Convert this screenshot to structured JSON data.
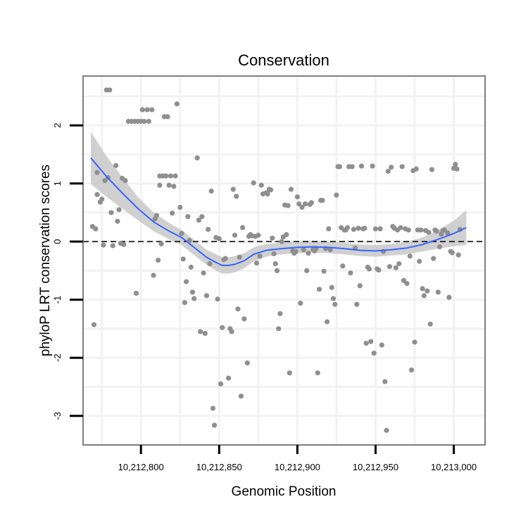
{
  "chart_data": {
    "type": "scatter",
    "title": "Conservation",
    "xlabel": "Genomic Position",
    "ylabel": "phyloP LRT conservation scores",
    "xlim": [
      10212763,
      10213020
    ],
    "ylim": [
      -3.5,
      2.85
    ],
    "x_ticks": [
      10212800,
      10212850,
      10212900,
      10212950,
      10213000
    ],
    "x_tick_labels": [
      "10,212,800",
      "10,212,850",
      "10,212,900",
      "10,212,950",
      "10,213,000"
    ],
    "y_ticks": [
      -3,
      -2,
      -1,
      0,
      1,
      2
    ],
    "y_tick_labels": [
      "-3",
      "-2",
      "-1",
      "0",
      "1",
      "2"
    ],
    "reference_line_y": 0,
    "colors": {
      "points": "#8f8f8f",
      "smooth_line": "#3366ff",
      "confidence_band": "#c8c8c8",
      "panel_border": "#7f7f7f",
      "grid": "#f2f2f2",
      "reference_line": "#000000"
    },
    "series": [
      {
        "name": "scores",
        "points": [
          [
            10212769,
            0.26
          ],
          [
            10212770,
            -1.43
          ],
          [
            10212771,
            0.22
          ],
          [
            10212772,
            1.19
          ],
          [
            10212772,
            0.81
          ],
          [
            10212774,
            0.68
          ],
          [
            10212775,
            0.73
          ],
          [
            10212776,
            -0.06
          ],
          [
            10212777,
            1.05
          ],
          [
            10212778,
            2.61
          ],
          [
            10212779,
            1.1
          ],
          [
            10212780,
            2.61
          ],
          [
            10212781,
            0.5
          ],
          [
            10212782,
            -0.07
          ],
          [
            10212784,
            1.31
          ],
          [
            10212785,
            0.35
          ],
          [
            10212786,
            0.55
          ],
          [
            10212787,
            -0.03
          ],
          [
            10212788,
            1.09
          ],
          [
            10212789,
            -0.05
          ],
          [
            10212790,
            1.05
          ],
          [
            10212792,
            2.07
          ],
          [
            10212794,
            2.07
          ],
          [
            10212796,
            2.07
          ],
          [
            10212797,
            -0.89
          ],
          [
            10212798,
            2.07
          ],
          [
            10212800,
            2.07
          ],
          [
            10212801,
            2.27
          ],
          [
            10212802,
            2.07
          ],
          [
            10212804,
            2.27
          ],
          [
            10212805,
            2.07
          ],
          [
            10212807,
            2.27
          ],
          [
            10212808,
            -0.58
          ],
          [
            10212809,
            0.39
          ],
          [
            10212810,
            0.45
          ],
          [
            10212811,
            -0.32
          ],
          [
            10212812,
            1.13
          ],
          [
            10212812,
            0.97
          ],
          [
            10212813,
            -0.04
          ],
          [
            10212814,
            1.13
          ],
          [
            10212815,
            2.15
          ],
          [
            10212816,
            1.13
          ],
          [
            10212817,
            2.15
          ],
          [
            10212818,
            0.97
          ],
          [
            10212819,
            1.13
          ],
          [
            10212820,
            0.49
          ],
          [
            10212821,
            0.95
          ],
          [
            10212822,
            1.13
          ],
          [
            10212823,
            2.37
          ],
          [
            10212825,
            0.59
          ],
          [
            10212826,
            0.14
          ],
          [
            10212827,
            -0.3
          ],
          [
            10212828,
            -1.05
          ],
          [
            10212829,
            -0.69
          ],
          [
            10212830,
            0.43
          ],
          [
            10212831,
            0.02
          ],
          [
            10212832,
            -0.44
          ],
          [
            10212833,
            -0.87
          ],
          [
            10212834,
            -0.98
          ],
          [
            10212836,
            1.44
          ],
          [
            10212837,
            0.37
          ],
          [
            10212838,
            -1.55
          ],
          [
            10212839,
            0.43
          ],
          [
            10212840,
            -0.54
          ],
          [
            10212841,
            -1.58
          ],
          [
            10212842,
            -0.93
          ],
          [
            10212843,
            0.21
          ],
          [
            10212844,
            -0.38
          ],
          [
            10212845,
            0.87
          ],
          [
            10212846,
            -2.87
          ],
          [
            10212847,
            -3.16
          ],
          [
            10212848,
            0.07
          ],
          [
            10212849,
            -0.99
          ],
          [
            10212850,
            0.05
          ],
          [
            10212851,
            -2.45
          ],
          [
            10212852,
            -1.48
          ],
          [
            10212853,
            -0.31
          ],
          [
            10212854,
            -0.29
          ],
          [
            10212856,
            -2.35
          ],
          [
            10212857,
            -1.5
          ],
          [
            10212858,
            -1.55
          ],
          [
            10212859,
            0.9
          ],
          [
            10212860,
            0.11
          ],
          [
            10212861,
            0.78
          ],
          [
            10212862,
            -1.16
          ],
          [
            10212863,
            -0.27
          ],
          [
            10212864,
            -2.66
          ],
          [
            10212865,
            0.24
          ],
          [
            10212866,
            -1.33
          ],
          [
            10212868,
            -2.09
          ],
          [
            10212869,
            0.09
          ],
          [
            10212870,
            0.12
          ],
          [
            10212871,
            0.1
          ],
          [
            10212872,
            1.01
          ],
          [
            10212873,
            0.09
          ],
          [
            10212874,
            -0.37
          ],
          [
            10212875,
            0.11
          ],
          [
            10212876,
            -0.25
          ],
          [
            10212877,
            0.97
          ],
          [
            10212878,
            0.82
          ],
          [
            10212880,
            0.84
          ],
          [
            10212881,
            0.82
          ],
          [
            10212882,
            0.9
          ],
          [
            10212883,
            0.89
          ],
          [
            10212884,
            0.06
          ],
          [
            10212885,
            -0.21
          ],
          [
            10212886,
            -0.38
          ],
          [
            10212887,
            -0.5
          ],
          [
            10212888,
            -1.5
          ],
          [
            10212889,
            -1.24
          ],
          [
            10212890,
            0.0
          ],
          [
            10212891,
            0.08
          ],
          [
            10212892,
            0.63
          ],
          [
            10212893,
            0.12
          ],
          [
            10212894,
            0.62
          ],
          [
            10212895,
            -2.26
          ],
          [
            10212896,
            0.9
          ],
          [
            10212897,
            -0.16
          ],
          [
            10212898,
            -0.2
          ],
          [
            10212899,
            -0.17
          ],
          [
            10212900,
            0.77
          ],
          [
            10212901,
            0.65
          ],
          [
            10212902,
            -1.06
          ],
          [
            10212903,
            0.59
          ],
          [
            10212904,
            -0.14
          ],
          [
            10212905,
            0.65
          ],
          [
            10212906,
            -0.5
          ],
          [
            10212907,
            -0.2
          ],
          [
            10212908,
            0.64
          ],
          [
            10212909,
            0.67
          ],
          [
            10212910,
            -0.14
          ],
          [
            10212911,
            -0.16
          ],
          [
            10212912,
            -0.12
          ],
          [
            10212913,
            -2.26
          ],
          [
            10212914,
            -0.82
          ],
          [
            10212915,
            0.71
          ],
          [
            10212916,
            0.71
          ],
          [
            10212917,
            -0.51
          ],
          [
            10212918,
            -0.12
          ],
          [
            10212919,
            -1.38
          ],
          [
            10212920,
            0.22
          ],
          [
            10212921,
            -0.14
          ],
          [
            10212922,
            -0.79
          ],
          [
            10212923,
            -0.98
          ],
          [
            10212924,
            -1.08
          ],
          [
            10212925,
            0.8
          ],
          [
            10212926,
            1.29
          ],
          [
            10212927,
            1.29
          ],
          [
            10212928,
            0.24
          ],
          [
            10212929,
            -0.42
          ],
          [
            10212930,
            0.2
          ],
          [
            10212931,
            0.2
          ],
          [
            10212932,
            0.24
          ],
          [
            10212933,
            1.29
          ],
          [
            10212934,
            -0.54
          ],
          [
            10212935,
            1.29
          ],
          [
            10212936,
            0.21
          ],
          [
            10212937,
            -0.11
          ],
          [
            10212938,
            -1.08
          ],
          [
            10212939,
            0.23
          ],
          [
            10212940,
            -0.76
          ],
          [
            10212941,
            1.3
          ],
          [
            10212942,
            0.22
          ],
          [
            10212943,
            0.23
          ],
          [
            10212944,
            -1.75
          ],
          [
            10212945,
            -0.44
          ],
          [
            10212946,
            -0.47
          ],
          [
            10212947,
            -1.72
          ],
          [
            10212948,
            1.3
          ],
          [
            10212949,
            -1.92
          ],
          [
            10212950,
            0.22
          ],
          [
            10212951,
            -0.47
          ],
          [
            10212952,
            -0.49
          ],
          [
            10212953,
            0.22
          ],
          [
            10212954,
            -1.78
          ],
          [
            10212955,
            -0.17
          ],
          [
            10212956,
            -2.41
          ],
          [
            10212957,
            -3.25
          ],
          [
            10212958,
            1.21
          ],
          [
            10212959,
            -0.43
          ],
          [
            10212960,
            1.28
          ],
          [
            10212961,
            0.26
          ],
          [
            10212962,
            0.23
          ],
          [
            10212963,
            -0.45
          ],
          [
            10212964,
            0.2
          ],
          [
            10212965,
            -0.38
          ],
          [
            10212966,
            0.24
          ],
          [
            10212967,
            1.29
          ],
          [
            10212968,
            -0.67
          ],
          [
            10212969,
            0.22
          ],
          [
            10212970,
            -0.72
          ],
          [
            10212971,
            0.2
          ],
          [
            10212972,
            -0.25
          ],
          [
            10212973,
            -2.21
          ],
          [
            10212974,
            1.22
          ],
          [
            10212975,
            -1.73
          ],
          [
            10212976,
            1.25
          ],
          [
            10212977,
            0.2
          ],
          [
            10212978,
            -0.34
          ],
          [
            10212979,
            0.2
          ],
          [
            10212980,
            -0.81
          ],
          [
            10212981,
            -0.93
          ],
          [
            10212982,
            0.19
          ],
          [
            10212983,
            -0.85
          ],
          [
            10212984,
            0.16
          ],
          [
            10212985,
            -1.42
          ],
          [
            10212986,
            1.24
          ],
          [
            10212987,
            -0.29
          ],
          [
            10212988,
            0.2
          ],
          [
            10212989,
            0.18
          ],
          [
            10212990,
            -0.87
          ],
          [
            10212991,
            -0.09
          ],
          [
            10212992,
            0.13
          ],
          [
            10212993,
            0.19
          ],
          [
            10212994,
            0.2
          ],
          [
            10212996,
            0.15
          ],
          [
            10212997,
            -0.96
          ],
          [
            10212998,
            -0.17
          ],
          [
            10212999,
            -0.19
          ],
          [
            10213000,
            1.26
          ],
          [
            10213001,
            1.33
          ],
          [
            10213002,
            1.25
          ],
          [
            10213003,
            -0.23
          ],
          [
            10213004,
            0.21
          ]
        ]
      },
      {
        "name": "smooth_fit",
        "type": "line",
        "points": [
          [
            10212768,
            1.44
          ],
          [
            10212778,
            1.12
          ],
          [
            10212788,
            0.84
          ],
          [
            10212798,
            0.57
          ],
          [
            10212808,
            0.34
          ],
          [
            10212818,
            0.18
          ],
          [
            10212826,
            0.07
          ],
          [
            10212834,
            -0.1
          ],
          [
            10212842,
            -0.27
          ],
          [
            10212848,
            -0.36
          ],
          [
            10212852,
            -0.41
          ],
          [
            10212856,
            -0.41
          ],
          [
            10212860,
            -0.39
          ],
          [
            10212866,
            -0.33
          ],
          [
            10212872,
            -0.22
          ],
          [
            10212880,
            -0.15
          ],
          [
            10212890,
            -0.12
          ],
          [
            10212900,
            -0.1
          ],
          [
            10212910,
            -0.09
          ],
          [
            10212920,
            -0.1
          ],
          [
            10212930,
            -0.12
          ],
          [
            10212940,
            -0.15
          ],
          [
            10212950,
            -0.16
          ],
          [
            10212960,
            -0.14
          ],
          [
            10212970,
            -0.11
          ],
          [
            10212980,
            -0.05
          ],
          [
            10212990,
            0.04
          ],
          [
            10213000,
            0.14
          ],
          [
            10213008,
            0.24
          ]
        ],
        "band_half_width": [
          0.45,
          0.35,
          0.27,
          0.2,
          0.16,
          0.14,
          0.13,
          0.13,
          0.13,
          0.14,
          0.14,
          0.14,
          0.14,
          0.13,
          0.12,
          0.11,
          0.1,
          0.1,
          0.1,
          0.1,
          0.1,
          0.1,
          0.1,
          0.1,
          0.11,
          0.12,
          0.16,
          0.22,
          0.3
        ]
      }
    ]
  }
}
